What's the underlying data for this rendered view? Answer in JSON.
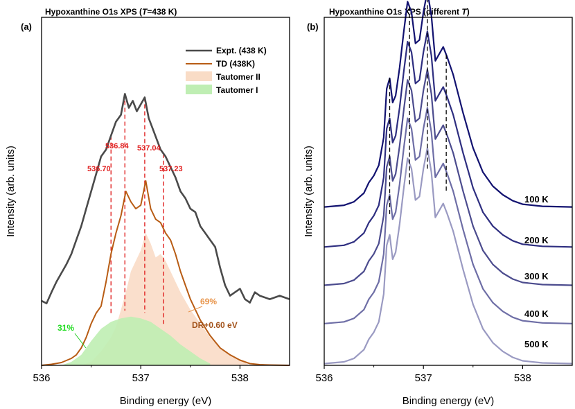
{
  "chart_data": [
    {
      "type": "line",
      "panel_label": "(a)",
      "title": "Hypoxanthine O1s XPS (T=438 K)",
      "title_prefix": "Hypoxanthine O1s XPS (",
      "title_italic": "T",
      "title_suffix": "=438 K)",
      "xlabel": "Binding energy (eV)",
      "ylabel": "Intensity (arb. units)",
      "xlim": [
        536.0,
        538.5
      ],
      "ylim": [
        0,
        100
      ],
      "xticks": [
        536,
        537,
        538
      ],
      "xtick_labels": [
        "536",
        "537",
        "538"
      ],
      "legend": [
        {
          "label": "Expt. (438 K)",
          "kind": "line",
          "color": "#4a4a4a"
        },
        {
          "label": "TD (438K)",
          "kind": "line",
          "color": "#b85c14"
        },
        {
          "label": "Tautomer II",
          "kind": "fill",
          "color": "#f9dcc6"
        },
        {
          "label": "Tautomer I",
          "kind": "fill",
          "color": "#bfeeb3"
        }
      ],
      "series": [
        {
          "name": "Expt. (438 K)",
          "color": "#4a4a4a",
          "x": [
            536.0,
            536.05,
            536.1,
            536.15,
            536.2,
            536.25,
            536.3,
            536.35,
            536.4,
            536.45,
            536.5,
            536.55,
            536.6,
            536.65,
            536.7,
            536.75,
            536.8,
            536.84,
            536.88,
            536.92,
            536.96,
            537.0,
            537.04,
            537.08,
            537.12,
            537.16,
            537.2,
            537.25,
            537.3,
            537.35,
            537.4,
            537.45,
            537.5,
            537.55,
            537.6,
            537.65,
            537.7,
            537.75,
            537.8,
            537.85,
            537.9,
            537.95,
            538.0,
            538.05,
            538.1,
            538.15,
            538.2,
            538.3,
            538.4,
            538.5
          ],
          "y": [
            18.5,
            17.8,
            21,
            24,
            26.5,
            29,
            32,
            36,
            40,
            45,
            50,
            55,
            60,
            62,
            66,
            70,
            72,
            78,
            74,
            76,
            73,
            75,
            77,
            71,
            68,
            65,
            62,
            60,
            57,
            54,
            50,
            48,
            45,
            44,
            40,
            38,
            36,
            34,
            28,
            23,
            20,
            21,
            22,
            19,
            18,
            21,
            20,
            19,
            20,
            19
          ]
        },
        {
          "name": "TD (438K)",
          "color": "#b85c14",
          "x": [
            536.0,
            536.1,
            536.2,
            536.3,
            536.35,
            536.4,
            536.45,
            536.5,
            536.55,
            536.6,
            536.65,
            536.7,
            536.75,
            536.8,
            536.85,
            536.9,
            536.95,
            537.0,
            537.05,
            537.1,
            537.15,
            537.2,
            537.25,
            537.3,
            537.35,
            537.4,
            537.45,
            537.5,
            537.6,
            537.7,
            537.8,
            537.9,
            538.0,
            538.1,
            538.2,
            538.3,
            538.5
          ],
          "y": [
            0,
            0.3,
            0.8,
            2,
            3,
            5,
            8,
            12,
            15,
            17,
            24,
            32,
            38,
            43,
            50,
            47,
            45,
            46,
            53,
            45,
            42,
            41,
            38,
            36,
            32,
            27,
            23,
            19,
            13,
            8.5,
            5,
            3,
            1.5,
            0.5,
            0.2,
            0.1,
            0
          ]
        },
        {
          "name": "Tautomer II",
          "color": "#f9dcc6",
          "x": [
            536.4,
            536.5,
            536.6,
            536.7,
            536.75,
            536.8,
            536.85,
            536.9,
            536.95,
            537.0,
            537.05,
            537.1,
            537.15,
            537.2,
            537.25,
            537.3,
            537.35,
            537.4,
            537.5,
            537.6,
            537.7,
            537.8,
            537.9,
            538.0,
            538.1
          ],
          "y": [
            0,
            1,
            4,
            8,
            11,
            16,
            21,
            27,
            30,
            33,
            38,
            35,
            31,
            32,
            30,
            27,
            24,
            21,
            16,
            12,
            8,
            5,
            3,
            1.5,
            0
          ]
        },
        {
          "name": "Tautomer I",
          "color": "#bfeeb3",
          "x": [
            536.2,
            536.3,
            536.4,
            536.5,
            536.6,
            536.7,
            536.8,
            536.9,
            537.0,
            537.1,
            537.2,
            537.3,
            537.4,
            537.5,
            537.6,
            537.7
          ],
          "y": [
            0,
            1,
            3,
            7,
            10.5,
            12.5,
            13.5,
            14,
            13.5,
            12.5,
            10.5,
            8.5,
            6,
            4,
            2,
            0.5
          ]
        }
      ],
      "peak_positions": [
        536.7,
        536.84,
        537.04,
        537.23
      ],
      "peak_labels": [
        "536.70",
        "536.84",
        "537.04",
        "537.23"
      ],
      "annotations": {
        "tautomer_ii_pct": "69%",
        "tautomer_i_pct": "31%",
        "shift_label": "DR+0.60 eV"
      }
    },
    {
      "type": "line",
      "panel_label": "(b)",
      "title": "Hypoxanthine O1s XPS (different T)",
      "title_prefix": "Hypoxanthine O1s XPS (different ",
      "title_italic": "T",
      "title_suffix": ")",
      "xlabel": "Binding energy (eV)",
      "ylabel": "Intensity (arb. units)",
      "xlim": [
        536.0,
        538.5
      ],
      "ylim": [
        0,
        100
      ],
      "xticks": [
        536,
        537,
        538
      ],
      "xtick_labels": [
        "536",
        "537",
        "538"
      ],
      "peak_positions": [
        536.66,
        536.86,
        537.04,
        537.23
      ],
      "base_shape": {
        "x": [
          536.0,
          536.2,
          536.3,
          536.4,
          536.45,
          536.5,
          536.55,
          536.6,
          536.63,
          536.66,
          536.69,
          536.72,
          536.76,
          536.8,
          536.84,
          536.88,
          536.92,
          536.96,
          537.0,
          537.04,
          537.08,
          537.12,
          537.16,
          537.2,
          537.24,
          537.3,
          537.4,
          537.5,
          537.6,
          537.7,
          537.8,
          537.9,
          538.0,
          538.2,
          538.5
        ],
        "y": [
          0,
          0.5,
          1.5,
          4,
          7,
          9,
          12,
          20,
          34,
          37,
          30,
          32,
          40,
          50,
          59,
          56,
          47,
          48,
          56,
          62,
          55,
          42,
          44,
          46,
          43,
          38,
          27,
          17,
          10,
          6,
          3.5,
          1.8,
          0.8,
          0.2,
          0
        ]
      },
      "series": [
        {
          "name": "100 K",
          "color": "#121270",
          "offset": 45.5,
          "scale": 1.0
        },
        {
          "name": "200 K",
          "color": "#2e2e80",
          "offset": 34.0,
          "scale": 1.0
        },
        {
          "name": "300 K",
          "color": "#4c4c8e",
          "offset": 23.0,
          "scale": 1.0
        },
        {
          "name": "400 K",
          "color": "#6e6ea6",
          "offset": 12.0,
          "scale": 1.0
        },
        {
          "name": "500 K",
          "color": "#9a9ac2",
          "offset": 0.5,
          "scale": 1.0
        }
      ]
    }
  ]
}
